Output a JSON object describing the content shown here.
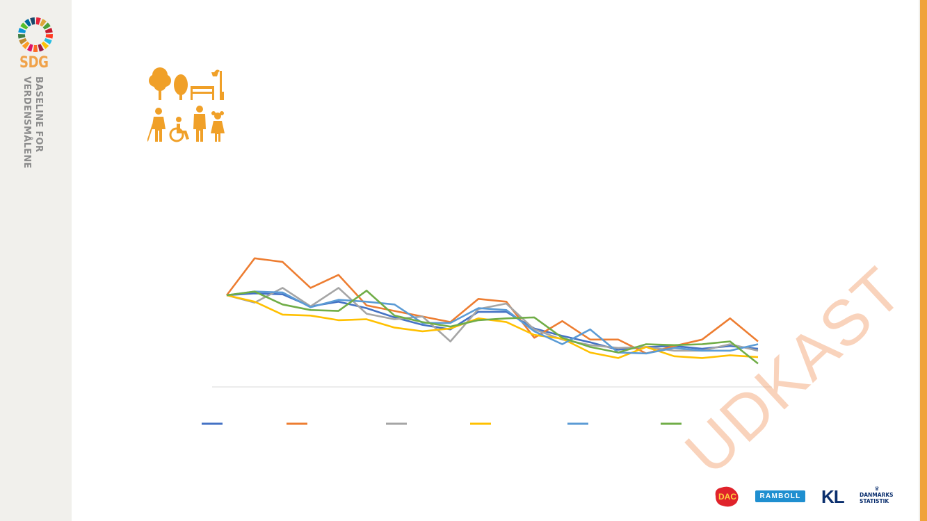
{
  "sidebar": {
    "abbreviation": "SDG",
    "subtitle_line1": "BASELINE FOR",
    "subtitle_line2": "VERDENSMÅLENE",
    "wheel_colors": [
      "#e5243b",
      "#dda63a",
      "#4c9f38",
      "#c5192d",
      "#ff3a21",
      "#26bde2",
      "#fcc30b",
      "#a21942",
      "#fd6925",
      "#dd1367",
      "#fd9d24",
      "#bf8b2e",
      "#3f7e44",
      "#0a97d9",
      "#56c02b",
      "#00689d",
      "#19486a"
    ]
  },
  "goal_icon": {
    "icons": [
      "deciduous-tree-icon",
      "tree-icon",
      "park-bench-icon",
      "street-lamp-icon",
      "elderly-person-icon",
      "wheelchair-user-icon",
      "man-icon",
      "girl-icon"
    ],
    "color": "#f0a028"
  },
  "chart_data": {
    "type": "line",
    "points": 20,
    "grid": false,
    "baseline": true,
    "legend_position": "bottom",
    "series": [
      {
        "color": "#4472c4",
        "values": [
          100,
          102,
          101,
          88,
          93,
          86,
          76,
          68,
          63,
          82,
          82,
          64,
          56,
          49,
          41,
          44,
          45,
          42,
          45,
          42
        ]
      },
      {
        "color": "#ed7d31",
        "values": [
          100,
          140,
          136,
          108,
          122,
          89,
          83,
          77,
          71,
          96,
          93,
          54,
          72,
          52,
          52,
          37,
          45,
          52,
          75,
          50
        ]
      },
      {
        "color": "#a5a5a5",
        "values": [
          100,
          92,
          108,
          88,
          108,
          80,
          74,
          77,
          50,
          85,
          91,
          63,
          52,
          46,
          43,
          44,
          40,
          40,
          47,
          40
        ]
      },
      {
        "color": "#ffc000",
        "values": [
          100,
          93,
          79,
          78,
          73,
          74,
          65,
          61,
          64,
          75,
          71,
          57,
          53,
          38,
          32,
          44,
          34,
          32,
          35,
          33
        ]
      },
      {
        "color": "#5b9bd5",
        "values": [
          100,
          104,
          103,
          87,
          95,
          93,
          90,
          70,
          70,
          86,
          84,
          61,
          47,
          63,
          38,
          37,
          43,
          40,
          40,
          47
        ]
      },
      {
        "color": "#70ad47",
        "values": [
          100,
          104,
          90,
          84,
          83,
          105,
          78,
          71,
          66,
          73,
          75,
          76,
          54,
          44,
          38,
          47,
          46,
          47,
          50,
          26
        ]
      }
    ]
  },
  "watermark": "UDKAST",
  "partners": {
    "dac": "DAC",
    "ramboll": "RAMBOLL",
    "kl": "KL",
    "dst_line1": "DANMARKS",
    "dst_line2": "STATISTIK",
    "dst_crown": "♛"
  }
}
